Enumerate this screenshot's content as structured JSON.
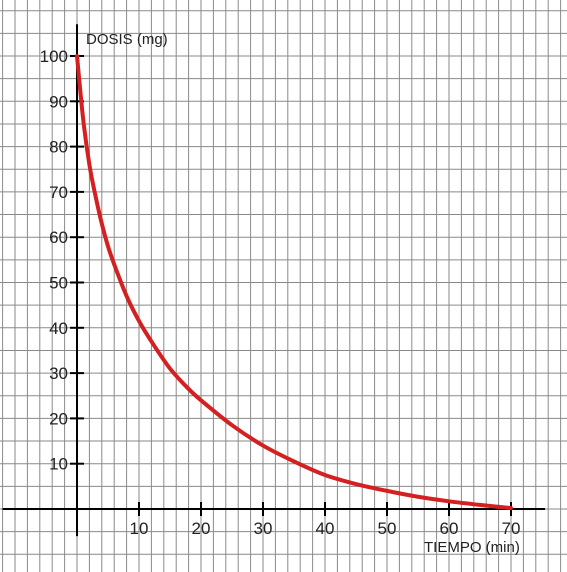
{
  "chart_data": {
    "type": "line",
    "title": "",
    "xlabel": "TIEMPO (min)",
    "ylabel": "DOSIS (mg)",
    "xlim": [
      0,
      70
    ],
    "ylim": [
      0,
      100
    ],
    "grid": true,
    "x_ticks": [
      "10",
      "20",
      "30",
      "40",
      "50",
      "60",
      "70"
    ],
    "y_ticks": [
      "10",
      "20",
      "30",
      "40",
      "50",
      "60",
      "70",
      "80",
      "90",
      "100"
    ],
    "series": [
      {
        "color": "#d42020",
        "x": [
          0,
          1,
          2,
          3,
          4,
          5,
          6,
          8,
          10,
          12,
          15,
          18,
          20,
          25,
          30,
          35,
          40,
          45,
          50,
          55,
          60,
          65,
          70
        ],
        "y": [
          100,
          86,
          76,
          69,
          63,
          58,
          54,
          47,
          41.5,
          37,
          31,
          26.5,
          24,
          18.5,
          14,
          10.5,
          7.5,
          5.5,
          4,
          2.7,
          1.7,
          0.9,
          0.2
        ]
      }
    ]
  },
  "colors": {
    "grid": "#8a8a8a",
    "axis": "#000000"
  }
}
